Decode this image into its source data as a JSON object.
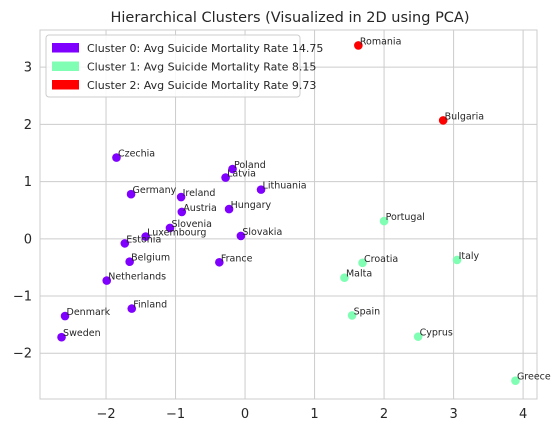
{
  "chart_data": {
    "type": "scatter",
    "title": "Hierarchical Clusters (Visualized in 2D using PCA)",
    "xlabel": "",
    "ylabel": "",
    "xlim": [
      -2.95,
      4.2
    ],
    "ylim": [
      -2.8,
      3.65
    ],
    "x_ticks": [
      -2,
      -1,
      0,
      1,
      2,
      3,
      4
    ],
    "y_ticks": [
      -2,
      -1,
      0,
      1,
      2,
      3
    ],
    "grid": true,
    "legend_position": "top-left",
    "series": [
      {
        "name": "Cluster 0: Avg Suicide Mortality Rate 14.75",
        "color": "#7f00ff",
        "points": [
          {
            "label": "Czechia",
            "x": -1.85,
            "y": 1.42
          },
          {
            "label": "Poland",
            "x": -0.18,
            "y": 1.22
          },
          {
            "label": "Latvia",
            "x": -0.28,
            "y": 1.07
          },
          {
            "label": "Lithuania",
            "x": 0.23,
            "y": 0.86
          },
          {
            "label": "Germany",
            "x": -1.64,
            "y": 0.78
          },
          {
            "label": "Ireland",
            "x": -0.92,
            "y": 0.73
          },
          {
            "label": "Austria",
            "x": -0.91,
            "y": 0.47
          },
          {
            "label": "Hungary",
            "x": -0.23,
            "y": 0.52
          },
          {
            "label": "Slovenia",
            "x": -1.08,
            "y": 0.19
          },
          {
            "label": "Slovakia",
            "x": -0.06,
            "y": 0.05
          },
          {
            "label": "Luxembourg",
            "x": -1.43,
            "y": 0.04
          },
          {
            "label": "Estonia",
            "x": -1.73,
            "y": -0.08
          },
          {
            "label": "Belgium",
            "x": -1.66,
            "y": -0.4
          },
          {
            "label": "France",
            "x": -0.37,
            "y": -0.41
          },
          {
            "label": "Netherlands",
            "x": -1.99,
            "y": -0.73
          },
          {
            "label": "Finland",
            "x": -1.63,
            "y": -1.22
          },
          {
            "label": "Denmark",
            "x": -2.59,
            "y": -1.35
          },
          {
            "label": "Sweden",
            "x": -2.64,
            "y": -1.72
          }
        ]
      },
      {
        "name": "Cluster 1: Avg Suicide Mortality Rate 8.15",
        "color": "#80ffb4",
        "points": [
          {
            "label": "Portugal",
            "x": 2.0,
            "y": 0.31
          },
          {
            "label": "Croatia",
            "x": 1.69,
            "y": -0.42
          },
          {
            "label": "Italy",
            "x": 3.05,
            "y": -0.37
          },
          {
            "label": "Malta",
            "x": 1.43,
            "y": -0.68
          },
          {
            "label": "Spain",
            "x": 1.54,
            "y": -1.34
          },
          {
            "label": "Cyprus",
            "x": 2.49,
            "y": -1.71
          },
          {
            "label": "Greece",
            "x": 3.89,
            "y": -2.48
          }
        ]
      },
      {
        "name": "Cluster 2: Avg Suicide Mortality Rate 9.73",
        "color": "#ff0000",
        "points": [
          {
            "label": "Romania",
            "x": 1.63,
            "y": 3.38
          },
          {
            "label": "Bulgaria",
            "x": 2.85,
            "y": 2.07
          }
        ]
      }
    ]
  }
}
